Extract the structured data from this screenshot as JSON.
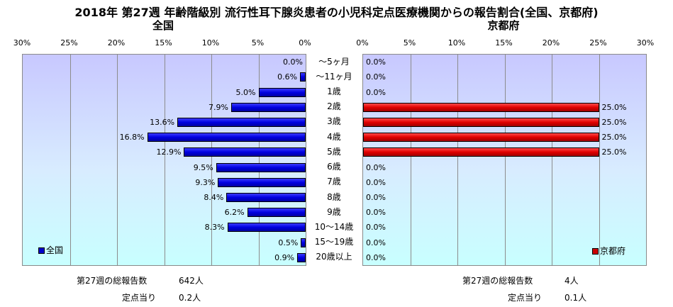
{
  "title": "2018年 第27週 年齢階級別 流行性耳下腺炎患者の小児科定点医療機関からの報告割合(全国、京都府)",
  "chart_data": [
    {
      "type": "bar",
      "orientation": "horizontal",
      "direction": "right-to-left",
      "title": "全国",
      "categories": [
        "～5ヶ月",
        "～11ヶ月",
        "1歳",
        "2歳",
        "3歳",
        "4歳",
        "5歳",
        "6歳",
        "7歳",
        "8歳",
        "9歳",
        "10～14歳",
        "15～19歳",
        "20歳以上"
      ],
      "series": [
        {
          "name": "全国",
          "values": [
            0.0,
            0.6,
            5.0,
            7.9,
            13.6,
            16.8,
            12.9,
            9.5,
            9.3,
            8.4,
            6.2,
            8.3,
            0.5,
            0.9
          ],
          "color": "#0000cc"
        }
      ],
      "value_labels": [
        "0.0%",
        "0.6%",
        "5.0%",
        "7.9%",
        "13.6%",
        "16.8%",
        "12.9%",
        "9.5%",
        "9.3%",
        "8.4%",
        "6.2%",
        "8.3%",
        "0.5%",
        "0.9%"
      ],
      "xlim": [
        0,
        30
      ],
      "ticks": [
        "30%",
        "25%",
        "20%",
        "15%",
        "10%",
        "5%",
        "0%"
      ],
      "grid": true,
      "legend": "bottom-left"
    },
    {
      "type": "bar",
      "orientation": "horizontal",
      "direction": "left-to-right",
      "title": "京都府",
      "categories": [
        "～5ヶ月",
        "～11ヶ月",
        "1歳",
        "2歳",
        "3歳",
        "4歳",
        "5歳",
        "6歳",
        "7歳",
        "8歳",
        "9歳",
        "10～14歳",
        "15～19歳",
        "20歳以上"
      ],
      "series": [
        {
          "name": "京都府",
          "values": [
            0.0,
            0.0,
            0.0,
            25.0,
            25.0,
            25.0,
            25.0,
            0.0,
            0.0,
            0.0,
            0.0,
            0.0,
            0.0,
            0.0
          ],
          "color": "#cc0000"
        }
      ],
      "value_labels": [
        "0.0%",
        "0.0%",
        "0.0%",
        "25.0%",
        "25.0%",
        "25.0%",
        "25.0%",
        "0.0%",
        "0.0%",
        "0.0%",
        "0.0%",
        "0.0%",
        "0.0%",
        "0.0%"
      ],
      "xlim": [
        0,
        30
      ],
      "ticks": [
        "0%",
        "5%",
        "10%",
        "15%",
        "20%",
        "25%",
        "30%"
      ],
      "grid": true,
      "legend": "bottom-right"
    }
  ],
  "footer": {
    "national": {
      "reports_label": "第27週の総報告数",
      "reports_value": "642人",
      "per_site_label": "定点当り",
      "per_site_value": "0.2人"
    },
    "kyoto": {
      "reports_label": "第27週の総報告数",
      "reports_value": "4人",
      "per_site_label": "定点当り",
      "per_site_value": "0.1人"
    }
  },
  "colors": {
    "national_bar": "#0000cc",
    "kyoto_bar": "#cc0000",
    "panel_top": "#c8c8ff",
    "panel_bottom": "#c8ffff"
  }
}
